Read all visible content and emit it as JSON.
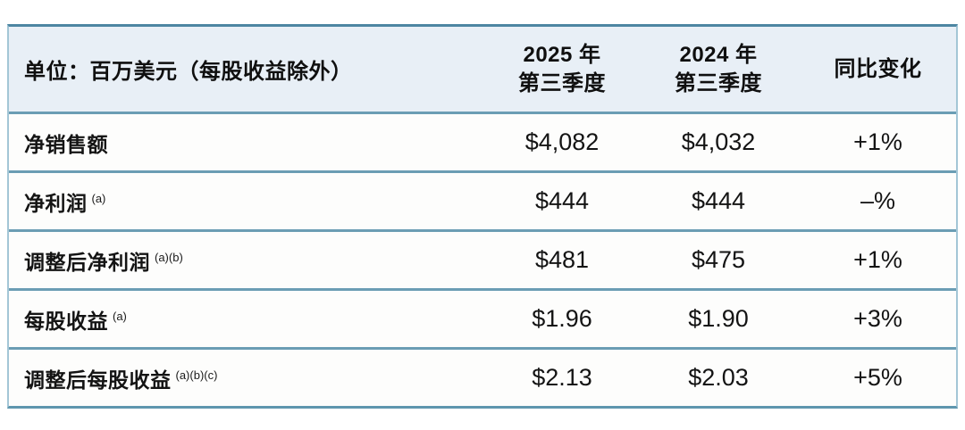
{
  "colors": {
    "header_bg": "#e8eff6",
    "row_bg": "#fdfdfc",
    "top_border": "#4d86a2",
    "row_divider": "#6b9db4",
    "side_border": "#a3c6d6",
    "text": "#141414"
  },
  "table": {
    "unit_label": "单位：百万美元（每股收益除外）",
    "columns": [
      {
        "line1": "2025 年",
        "line2": "第三季度"
      },
      {
        "line1": "2024 年",
        "line2": "第三季度"
      },
      {
        "line1": "同比变化",
        "line2": ""
      }
    ],
    "rows": [
      {
        "label": "净销售额",
        "superscript": "",
        "q3_2025": "$4,082",
        "q3_2024": "$4,032",
        "yoy_change": "+1%"
      },
      {
        "label": "净利润",
        "superscript": "(a)",
        "q3_2025": "$444",
        "q3_2024": "$444",
        "yoy_change": "–%"
      },
      {
        "label": "调整后净利润",
        "superscript": "(a)(b)",
        "q3_2025": "$481",
        "q3_2024": "$475",
        "yoy_change": "+1%"
      },
      {
        "label": "每股收益",
        "superscript": "(a)",
        "q3_2025": "$1.96",
        "q3_2024": "$1.90",
        "yoy_change": "+3%"
      },
      {
        "label": "调整后每股收益",
        "superscript": "(a)(b)(c)",
        "q3_2025": "$2.13",
        "q3_2024": "$2.03",
        "yoy_change": "+5%"
      }
    ]
  },
  "chart_data": {
    "type": "table",
    "title": "单位：百万美元（每股收益除外）",
    "columns": [
      "",
      "2025 年 第三季度",
      "2024 年 第三季度",
      "同比变化"
    ],
    "rows": [
      [
        "净销售额",
        "$4,082",
        "$4,032",
        "+1%"
      ],
      [
        "净利润 (a)",
        "$444",
        "$444",
        "–%"
      ],
      [
        "调整后净利润 (a)(b)",
        "$481",
        "$475",
        "+1%"
      ],
      [
        "每股收益 (a)",
        "$1.96",
        "$1.90",
        "+3%"
      ],
      [
        "调整后每股收益 (a)(b)(c)",
        "$2.13",
        "$2.03",
        "+5%"
      ]
    ]
  }
}
